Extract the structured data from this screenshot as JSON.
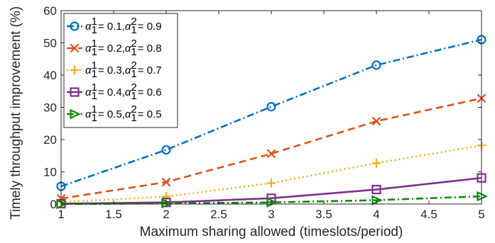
{
  "chart_data": {
    "type": "line",
    "title": "",
    "xlabel": "Maximum sharing allowed (timeslots/period)",
    "ylabel": "Timely throughput improvement (%)",
    "xlim": [
      1,
      5
    ],
    "ylim": [
      0,
      60
    ],
    "xticks": [
      "1",
      "1.5",
      "2",
      "2.5",
      "3",
      "3.5",
      "4",
      "4.5",
      "5"
    ],
    "yticks": [
      "0",
      "10",
      "20",
      "30",
      "40",
      "50",
      "60"
    ],
    "grid": false,
    "legend_position": "top-left",
    "x": [
      1,
      2,
      3,
      4,
      5
    ],
    "series": [
      {
        "name": "α11 = 0.1, α12 = 0.9",
        "a1": "0.1",
        "a2": "0.9",
        "color": "#0072BD",
        "marker": "circle",
        "dash": "dashdot",
        "values": [
          5.5,
          16.8,
          30.2,
          43.1,
          51.0
        ]
      },
      {
        "name": "α11 = 0.2, α12 = 0.8",
        "a1": "0.2",
        "a2": "0.8",
        "color": "#D95319",
        "marker": "x",
        "dash": "dashed",
        "values": [
          1.7,
          6.8,
          15.6,
          25.7,
          32.8
        ]
      },
      {
        "name": "α11 = 0.3, α12 = 0.7",
        "a1": "0.3",
        "a2": "0.7",
        "color": "#EDB120",
        "marker": "plus",
        "dash": "dotted",
        "values": [
          0.6,
          2.3,
          6.5,
          12.7,
          18.2
        ]
      },
      {
        "name": "α11 = 0.4, α12 = 0.6",
        "a1": "0.4",
        "a2": "0.6",
        "color": "#7E2F8E",
        "marker": "square",
        "dash": "solid",
        "values": [
          0.1,
          0.5,
          1.8,
          4.5,
          8.1
        ]
      },
      {
        "name": "α11 = 0.5, α12 = 0.5",
        "a1": "0.5",
        "a2": "0.5",
        "color": "#0B8A0B",
        "marker": "triangle-right",
        "dash": "dashdot",
        "values": [
          0.0,
          0.2,
          0.5,
          1.2,
          2.4
        ]
      }
    ]
  }
}
